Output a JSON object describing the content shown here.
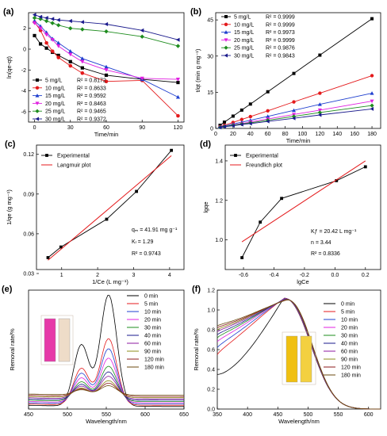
{
  "chart_data": [
    {
      "panel": "(a)",
      "type": "line",
      "xlabel": "Time/min",
      "ylabel": "ln(qe-qt)",
      "xlim": [
        -5,
        125
      ],
      "ylim": [
        -7,
        3.5
      ],
      "xticks": [
        0,
        30,
        60,
        90,
        120
      ],
      "yticks": [
        -6,
        -4,
        -2,
        0,
        2
      ],
      "legend_position": "bottom-left",
      "x": [
        0,
        5,
        10,
        15,
        20,
        30,
        40,
        60,
        90,
        120
      ],
      "series": [
        {
          "name": "5 mg/L",
          "r2": "R² = 0.8172",
          "color": "#000000",
          "marker": "square",
          "values": [
            1.3,
            0.5,
            0.1,
            -0.3,
            -0.6,
            -1.2,
            -1.8,
            -2.5,
            -2.9,
            -3.2
          ]
        },
        {
          "name": "10 mg/L",
          "r2": "R² = 0.8633",
          "color": "#e41a1c",
          "marker": "circle",
          "values": [
            2.6,
            1.8,
            0.6,
            -0.2,
            -0.8,
            -1.6,
            -2.3,
            -3.1,
            -3.0,
            -6.4
          ]
        },
        {
          "name": "15 mg/L",
          "r2": "R² = 0.9592",
          "color": "#1f3fcf",
          "marker": "triangle-up",
          "values": [
            2.7,
            2.2,
            1.6,
            1.0,
            0.6,
            -0.2,
            -0.9,
            -1.7,
            -2.9,
            -4.6
          ]
        },
        {
          "name": "20 mg/L",
          "r2": "R² = 0.8463",
          "color": "#e020e0",
          "marker": "triangle-down",
          "values": [
            2.5,
            2.0,
            1.4,
            0.9,
            0.3,
            -0.5,
            -1.2,
            -2.0,
            -2.8,
            -2.9
          ]
        },
        {
          "name": "25 mg/L",
          "r2": "R² = 0.9465",
          "color": "#1e8c1e",
          "marker": "diamond",
          "values": [
            3.0,
            2.9,
            2.7,
            2.5,
            2.3,
            2.0,
            1.9,
            1.7,
            1.2,
            0.3
          ]
        },
        {
          "name": "30 mg/L",
          "r2": "R² = 0.9372",
          "color": "#1a1a8c",
          "marker": "triangle-left",
          "values": [
            3.3,
            3.1,
            3.0,
            2.9,
            2.8,
            2.7,
            2.6,
            2.4,
            1.8,
            0.9
          ]
        }
      ]
    },
    {
      "panel": "(b)",
      "type": "line",
      "xlabel": "Time/min",
      "ylabel": "t/qt (min g mg⁻¹)",
      "xlim": [
        0,
        190
      ],
      "ylim": [
        0,
        48
      ],
      "xticks": [
        0,
        20,
        40,
        60,
        80,
        100,
        120,
        140,
        160,
        180
      ],
      "yticks": [
        0,
        15,
        30,
        45
      ],
      "legend_position": "top-left",
      "x": [
        5,
        10,
        20,
        30,
        40,
        60,
        90,
        120,
        180
      ],
      "series": [
        {
          "name": "5 mg/L",
          "r2": "R² = 0.9999",
          "color": "#000000",
          "marker": "square",
          "values": [
            1.3,
            2.6,
            5.1,
            7.6,
            10.1,
            15.2,
            22.8,
            30.4,
            45.5
          ]
        },
        {
          "name": "10 mg/L",
          "r2": "R² = 0.9999",
          "color": "#e41a1c",
          "marker": "circle",
          "values": [
            0.7,
            1.3,
            2.5,
            3.7,
            4.9,
            7.3,
            11.0,
            14.6,
            21.9
          ]
        },
        {
          "name": "15 mg/L",
          "r2": "R² = 0.9973",
          "color": "#1f3fcf",
          "marker": "triangle-up",
          "values": [
            0.6,
            1.0,
            1.8,
            2.6,
            3.4,
            5.0,
            7.5,
            10.0,
            14.6
          ]
        },
        {
          "name": "20 mg/L",
          "r2": "R² = 0.9999",
          "color": "#e020e0",
          "marker": "triangle-down",
          "values": [
            0.5,
            0.8,
            1.4,
            2.0,
            2.7,
            3.9,
            5.8,
            7.6,
            11.3
          ]
        },
        {
          "name": "25 mg/L",
          "r2": "R² = 0.9876",
          "color": "#1e8c1e",
          "marker": "diamond",
          "values": [
            0.5,
            0.8,
            1.3,
            1.8,
            2.3,
            3.4,
            5.0,
            6.6,
            9.5
          ]
        },
        {
          "name": "30 mg/L",
          "r2": "R² = 0.9843",
          "color": "#1a1a8c",
          "marker": "triangle-left",
          "values": [
            0.4,
            0.7,
            1.1,
            1.6,
            2.0,
            2.9,
            4.2,
            5.6,
            8.1
          ]
        }
      ]
    },
    {
      "panel": "(c)",
      "type": "line",
      "xlabel": "1/Ce (L mg⁻¹)",
      "ylabel": "1/qe (g mg⁻¹)",
      "xlim": [
        0.3,
        4.4
      ],
      "ylim": [
        0.033,
        0.127
      ],
      "xticks": [
        1,
        2,
        3,
        4
      ],
      "yticks": [
        0.03,
        0.06,
        0.09,
        0.12
      ],
      "ytick_labels": [
        "0.03",
        "0.06",
        "0.09",
        "0.12"
      ],
      "legend_position": "top-left",
      "legend": [
        "Experimental",
        "Langmuir plot"
      ],
      "annotations": [
        "qₘ = 41.91 mg g⁻¹",
        "Kₗ = 1.29",
        "R² = 0.9743"
      ],
      "experimental": {
        "x": [
          0.62,
          0.98,
          2.25,
          3.08,
          4.05
        ],
        "y": [
          0.042,
          0.05,
          0.071,
          0.092,
          0.123
        ]
      },
      "fit": {
        "x": [
          0.62,
          4.05
        ],
        "y": [
          0.04,
          0.119
        ]
      }
    },
    {
      "panel": "(d)",
      "type": "line",
      "xlabel": "lgCe",
      "ylabel": "lgqe",
      "xlim": [
        -0.72,
        0.3
      ],
      "ylim": [
        0.85,
        1.48
      ],
      "xticks": [
        -0.6,
        -0.4,
        -0.2,
        0.0,
        0.2
      ],
      "xtick_labels": [
        "-0.6",
        "-0.4",
        "-0.2",
        "0.0",
        "0.2"
      ],
      "yticks": [
        1.0,
        1.2,
        1.4
      ],
      "ytick_labels": [
        "1.0",
        "1.2",
        "1.4"
      ],
      "legend_position": "top-left",
      "legend": [
        "Experimental",
        "Freundlich plot"
      ],
      "annotations": [
        "Kƒ = 20.42 L mg⁻¹",
        "n = 3.44",
        "R² = 0.8336"
      ],
      "experimental": {
        "x": [
          -0.61,
          -0.49,
          -0.35,
          0.01,
          0.2
        ],
        "y": [
          0.91,
          1.09,
          1.21,
          1.3,
          1.37
        ]
      },
      "fit": {
        "x": [
          -0.61,
          0.2
        ],
        "y": [
          0.99,
          1.4
        ]
      }
    },
    {
      "panel": "(e)",
      "type": "line",
      "xlabel": "Wavelength/nm",
      "ylabel": "Removal rate/%",
      "xlim": [
        450,
        650
      ],
      "ylim": [
        0,
        1.9
      ],
      "xticks": [
        450,
        500,
        550,
        600,
        650
      ],
      "legend_position": "top-right",
      "peak_nm": 553,
      "series": [
        {
          "name": "0 min",
          "color": "#000000",
          "peak": 1.78
        },
        {
          "name": "5 min",
          "color": "#e41a1c",
          "peak": 1.06
        },
        {
          "name": "10 min",
          "color": "#1f3fcf",
          "peak": 0.88
        },
        {
          "name": "20 min",
          "color": "#e020e0",
          "peak": 0.71
        },
        {
          "name": "30 min",
          "color": "#1e8c1e",
          "peak": 0.56
        },
        {
          "name": "40 min",
          "color": "#1a1a8c",
          "peak": 0.45
        },
        {
          "name": "60 min",
          "color": "#8c1aa0",
          "peak": 0.36
        },
        {
          "name": "90 min",
          "color": "#8c8c1a",
          "peak": 0.27
        },
        {
          "name": "120 min",
          "color": "#8c1a1a",
          "peak": 0.21
        },
        {
          "name": "180 min",
          "color": "#6b4a0f",
          "peak": 0.15
        }
      ]
    },
    {
      "panel": "(f)",
      "type": "line",
      "xlabel": "Wavelength/nm",
      "ylabel": "Removal rate/%",
      "xlim": [
        350,
        620
      ],
      "ylim": [
        0,
        1.2
      ],
      "xticks": [
        350,
        400,
        450,
        500,
        550,
        600
      ],
      "yticks": [
        0.0,
        0.2,
        0.4,
        0.6,
        0.8,
        1.0,
        1.2
      ],
      "ytick_labels": [
        "0.0",
        "0.2",
        "0.4",
        "0.6",
        "0.8",
        "1.0",
        "1.2"
      ],
      "legend_position": "top-right",
      "series": [
        {
          "name": "0 min",
          "color": "#000000",
          "start": 0.35
        },
        {
          "name": "5 min",
          "color": "#e41a1c",
          "start": 0.55
        },
        {
          "name": "10 min",
          "color": "#1f3fcf",
          "start": 0.62
        },
        {
          "name": "20 min",
          "color": "#e020e0",
          "start": 0.68
        },
        {
          "name": "30 min",
          "color": "#1e8c1e",
          "start": 0.72
        },
        {
          "name": "40 min",
          "color": "#1a1a8c",
          "start": 0.75
        },
        {
          "name": "60 min",
          "color": "#8c1aa0",
          "start": 0.78
        },
        {
          "name": "90 min",
          "color": "#8c8c1a",
          "start": 0.8
        },
        {
          "name": "120 min",
          "color": "#8c1a1a",
          "start": 0.82
        },
        {
          "name": "180 min",
          "color": "#6b4a0f",
          "start": 0.84
        }
      ]
    }
  ]
}
